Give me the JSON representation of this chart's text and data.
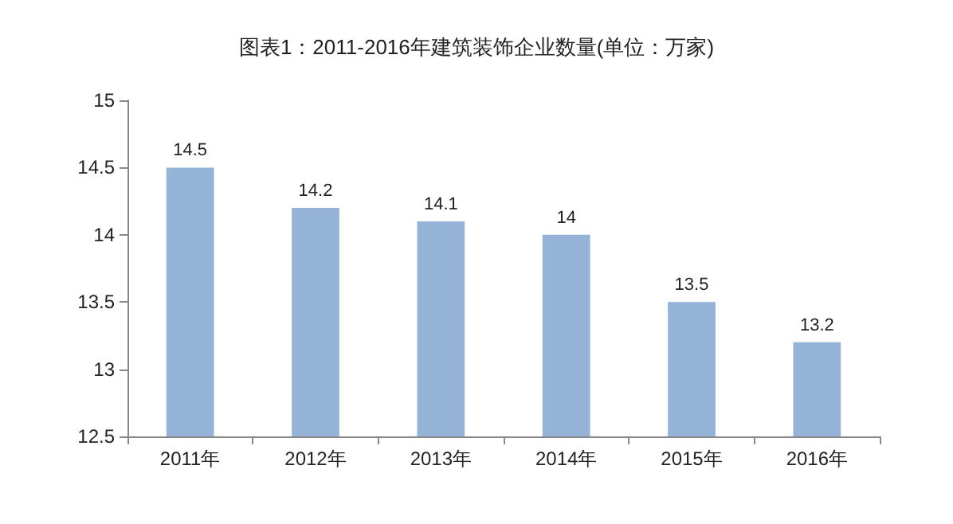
{
  "chart_data": {
    "type": "bar",
    "title": "图表1：2011-2016年建筑装饰企业数量(单位：万家)",
    "categories": [
      "2011年",
      "2012年",
      "2013年",
      "2014年",
      "2015年",
      "2016年"
    ],
    "values": [
      14.5,
      14.2,
      14.1,
      14,
      13.5,
      13.2
    ],
    "color": "#95b3d7",
    "ylim": [
      12.5,
      15
    ],
    "yticks": [
      12.5,
      13,
      13.5,
      14,
      14.5,
      15
    ],
    "data_labels": true
  }
}
